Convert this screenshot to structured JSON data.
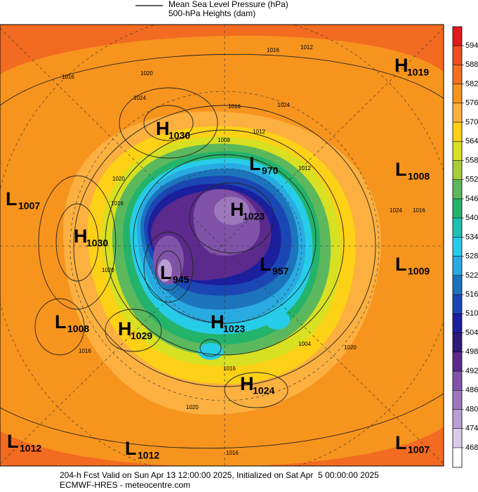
{
  "header": {
    "legend_line": "Mean Sea Level Pressure (hPa)",
    "legend_fill": "500-hPa Heights (dam)"
  },
  "colorbar": {
    "ticks": [
      594,
      588,
      582,
      576,
      570,
      564,
      558,
      552,
      546,
      540,
      534,
      528,
      522,
      516,
      510,
      504,
      498,
      492,
      486,
      480,
      474,
      468
    ],
    "colors": [
      "#e31a1c",
      "#f04e23",
      "#f37021",
      "#f7941d",
      "#fbb040",
      "#fcd116",
      "#d7e021",
      "#a6ce39",
      "#5cb85c",
      "#24b36b",
      "#1fc2b0",
      "#27cde8",
      "#29abe2",
      "#1c75bc",
      "#1b47b5",
      "#1b1f9e",
      "#2e1a78",
      "#5b2a8c",
      "#8053a8",
      "#9e78bd",
      "#bb9fd2",
      "#dccbe8",
      "#ffffff"
    ]
  },
  "centers": [
    {
      "kind": "H",
      "value": "1019"
    },
    {
      "kind": "L",
      "value": "1008"
    },
    {
      "kind": "L",
      "value": "1007"
    },
    {
      "kind": "H",
      "value": "1030"
    },
    {
      "kind": "L",
      "value": "970"
    },
    {
      "kind": "H",
      "value": "1023"
    },
    {
      "kind": "H",
      "value": "1030"
    },
    {
      "kind": "L",
      "value": "945"
    },
    {
      "kind": "L",
      "value": "957"
    },
    {
      "kind": "L",
      "value": "1009"
    },
    {
      "kind": "L",
      "value": "1008"
    },
    {
      "kind": "H",
      "value": "1029"
    },
    {
      "kind": "H",
      "value": "1023"
    },
    {
      "kind": "H",
      "value": "1024"
    },
    {
      "kind": "L",
      "value": "1012"
    },
    {
      "kind": "L",
      "value": "1012"
    },
    {
      "kind": "L",
      "value": "1007"
    }
  ],
  "contour_labels": [
    "1016",
    "1012",
    "1016",
    "1020",
    "1024",
    "1016",
    "1024",
    "1012",
    "1008",
    "1020",
    "1016",
    "1020",
    "1016",
    "1024",
    "1012",
    "1004",
    "1020",
    "1016",
    "1016",
    "1020",
    "1016"
  ],
  "footer": {
    "line1": "204-h Fcst Valid on Sun Apr 13 12:00:00 2025, Initialized on Sat Apr  5 00:00:00 2025",
    "line2": "ECMWF-HRES - meteocentre.com"
  }
}
